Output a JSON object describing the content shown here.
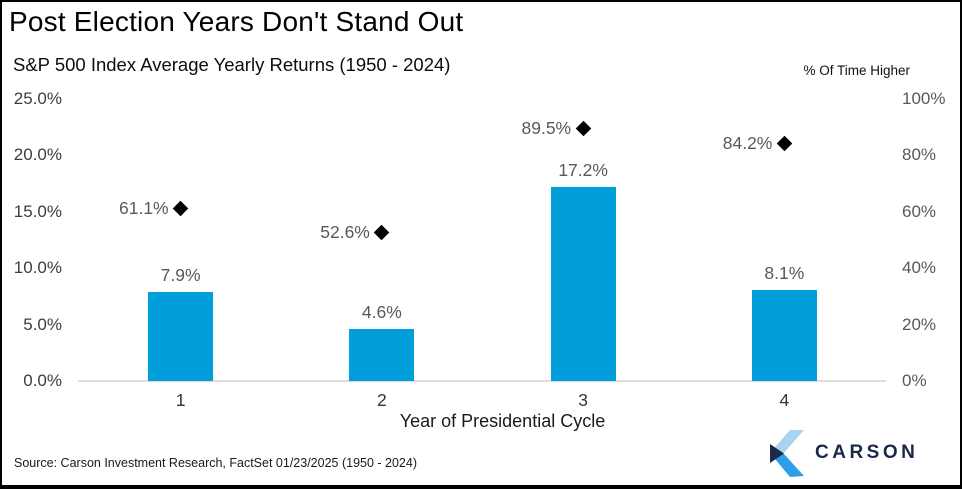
{
  "header": {
    "title": "Post Election Years Don't Stand Out",
    "subtitle": "S&P 500 Index Average Yearly Returns (1950 - 2024)"
  },
  "chart_data": {
    "type": "bar",
    "title": "Post Election Years Don't Stand Out",
    "subtitle": "S&P 500 Index Average Yearly Returns (1950 - 2024)",
    "categories": [
      "1",
      "2",
      "3",
      "4"
    ],
    "xlabel": "Year of Presidential Cycle",
    "series": [
      {
        "name": "Average Yearly Return",
        "type": "bar",
        "axis": "left",
        "values": [
          7.9,
          4.6,
          17.2,
          8.1
        ],
        "labels": [
          "7.9%",
          "4.6%",
          "17.2%",
          "8.1%"
        ]
      },
      {
        "name": "% Of Time Higher",
        "type": "diamond-marker",
        "axis": "right",
        "values": [
          61.1,
          52.6,
          89.5,
          84.2
        ],
        "labels": [
          "61.1%",
          "52.6%",
          "89.5%",
          "84.2%"
        ]
      }
    ],
    "left_axis": {
      "min": 0,
      "max": 25,
      "ticks": [
        "25.0%",
        "20.0%",
        "15.0%",
        "10.0%",
        "5.0%",
        "0.0%"
      ]
    },
    "right_axis": {
      "min": 0,
      "max": 100,
      "title": "% Of Time Higher",
      "ticks": [
        "100%",
        "80%",
        "60%",
        "40%",
        "20%",
        "0%"
      ]
    },
    "grid": false,
    "legend_position": "none"
  },
  "footer": {
    "source": "Source: Carson Investment Research, FactSet 01/23/2025 (1950 - 2024)",
    "logo_text": "CARSON"
  },
  "colors": {
    "bar": "#009EDB",
    "diamond": "#000000",
    "axis_line": "#DCDCDC",
    "value_label": "#595959",
    "left_tick": "#3D3D3D",
    "right_tick": "#595959",
    "logo_navy": "#1B2A4B",
    "logo_light_blue": "#A8D4F2",
    "logo_blue": "#2B9FE8"
  }
}
